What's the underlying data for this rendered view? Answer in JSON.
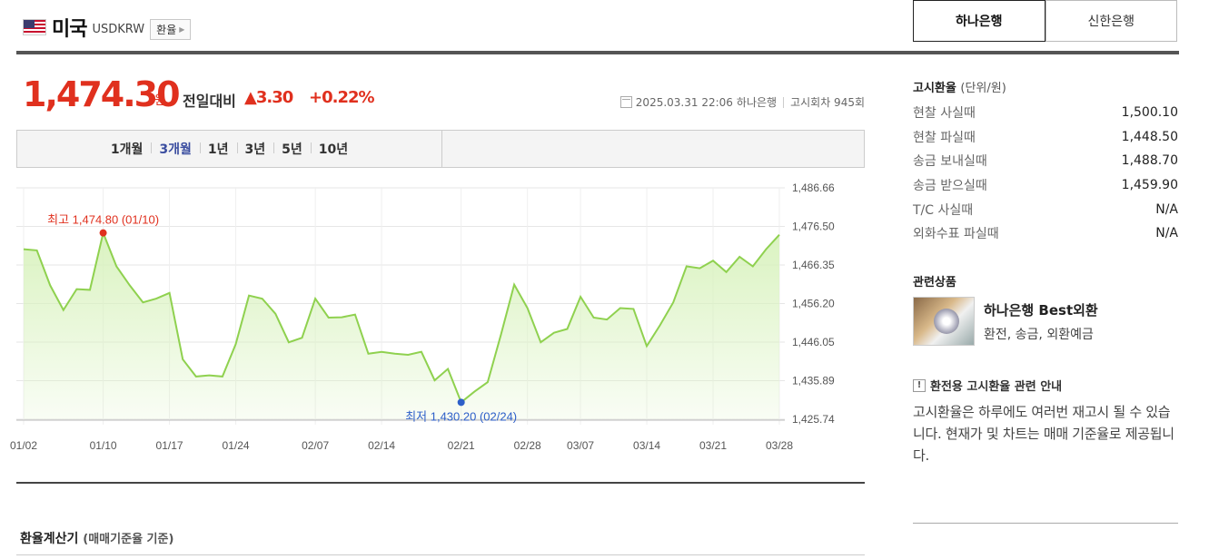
{
  "header": {
    "title": "미국",
    "code": "USDKRW",
    "converter_label": "환율"
  },
  "bank_tabs": [
    {
      "label": "하나은행",
      "active": true
    },
    {
      "label": "신한은행",
      "active": false
    }
  ],
  "price": {
    "value": "1,474.30",
    "unit": "원",
    "diff_label": "전일대비",
    "diff_value": "▲3.30",
    "diff_percent": "+0.22%",
    "datetime": "2025.03.31 22:06",
    "bank": "하나은행",
    "round": "고시회차 945회"
  },
  "periods": [
    {
      "label": "1개월",
      "active": false
    },
    {
      "label": "3개월",
      "active": true
    },
    {
      "label": "1년",
      "active": false
    },
    {
      "label": "3년",
      "active": false
    },
    {
      "label": "5년",
      "active": false
    },
    {
      "label": "10년",
      "active": false
    }
  ],
  "chart_data": {
    "type": "area",
    "title": "",
    "xlabel": "",
    "ylabel": "",
    "x_ticks": [
      "01/02",
      "01/10",
      "01/17",
      "01/24",
      "02/07",
      "02/14",
      "02/21",
      "02/28",
      "03/07",
      "03/14",
      "03/21",
      "03/28"
    ],
    "y_ticks": [
      "1,486.66",
      "1,476.50",
      "1,466.35",
      "1,456.20",
      "1,446.05",
      "1,435.89",
      "1,425.74"
    ],
    "ylim": [
      1425.74,
      1486.66
    ],
    "grid": true,
    "line_color": "#8fd14f",
    "fill_color": "#d8f2bd",
    "values": [
      1470.5,
      1470.2,
      1461.0,
      1454.5,
      1460.0,
      1459.8,
      1474.8,
      1466.0,
      1461.0,
      1456.5,
      1457.5,
      1459.0,
      1441.5,
      1437.0,
      1437.3,
      1437.0,
      1445.5,
      1458.3,
      1457.5,
      1453.5,
      1446.0,
      1447.2,
      1457.5,
      1452.5,
      1452.6,
      1453.3,
      1443.0,
      1443.5,
      1443.0,
      1442.7,
      1443.5,
      1436.0,
      1439.0,
      1430.2,
      1433.0,
      1435.5,
      1448.0,
      1461.2,
      1455.0,
      1446.0,
      1448.5,
      1449.5,
      1458.0,
      1452.5,
      1452.0,
      1455.0,
      1454.8,
      1445.0,
      1450.5,
      1456.5,
      1466.0,
      1465.5,
      1467.5,
      1464.5,
      1468.5,
      1466.0,
      1470.5,
      1474.3
    ],
    "tick_positions": [
      0,
      6,
      11,
      16,
      22,
      27,
      33,
      38,
      42,
      47,
      52,
      57
    ],
    "max": {
      "label": "최고 1,474.80 (01/10)",
      "index": 6
    },
    "min": {
      "label": "최저 1,430.20 (02/24)",
      "index": 33
    },
    "max_color": "#e0301e",
    "min_color": "#2d5fc9"
  },
  "calculator": {
    "title": "환율계산기",
    "subtitle": "(매매기준율 기준)"
  },
  "rates": {
    "head": "고시환율",
    "head_unit": "(단위/원)",
    "rows": [
      {
        "label": "현찰 사실때",
        "value": "1,500.10"
      },
      {
        "label": "현찰 파실때",
        "value": "1,448.50"
      },
      {
        "label": "송금 보내실때",
        "value": "1,488.70"
      },
      {
        "label": "송금 받으실때",
        "value": "1,459.90"
      },
      {
        "label": "T/C 사실때",
        "value": "N/A"
      },
      {
        "label": "외화수표 파실때",
        "value": "N/A"
      }
    ]
  },
  "related": {
    "head": "관련상품",
    "name": "하나은행 Best외환",
    "desc": "환전, 송금, 외환예금"
  },
  "notice": {
    "head": "환전용 고시환율 관련 안내",
    "text": "고시환율은 하루에도 여러번 재고시 될 수 있습니다. 현재가 및 차트는 매매 기준율로 제공됩니다."
  }
}
